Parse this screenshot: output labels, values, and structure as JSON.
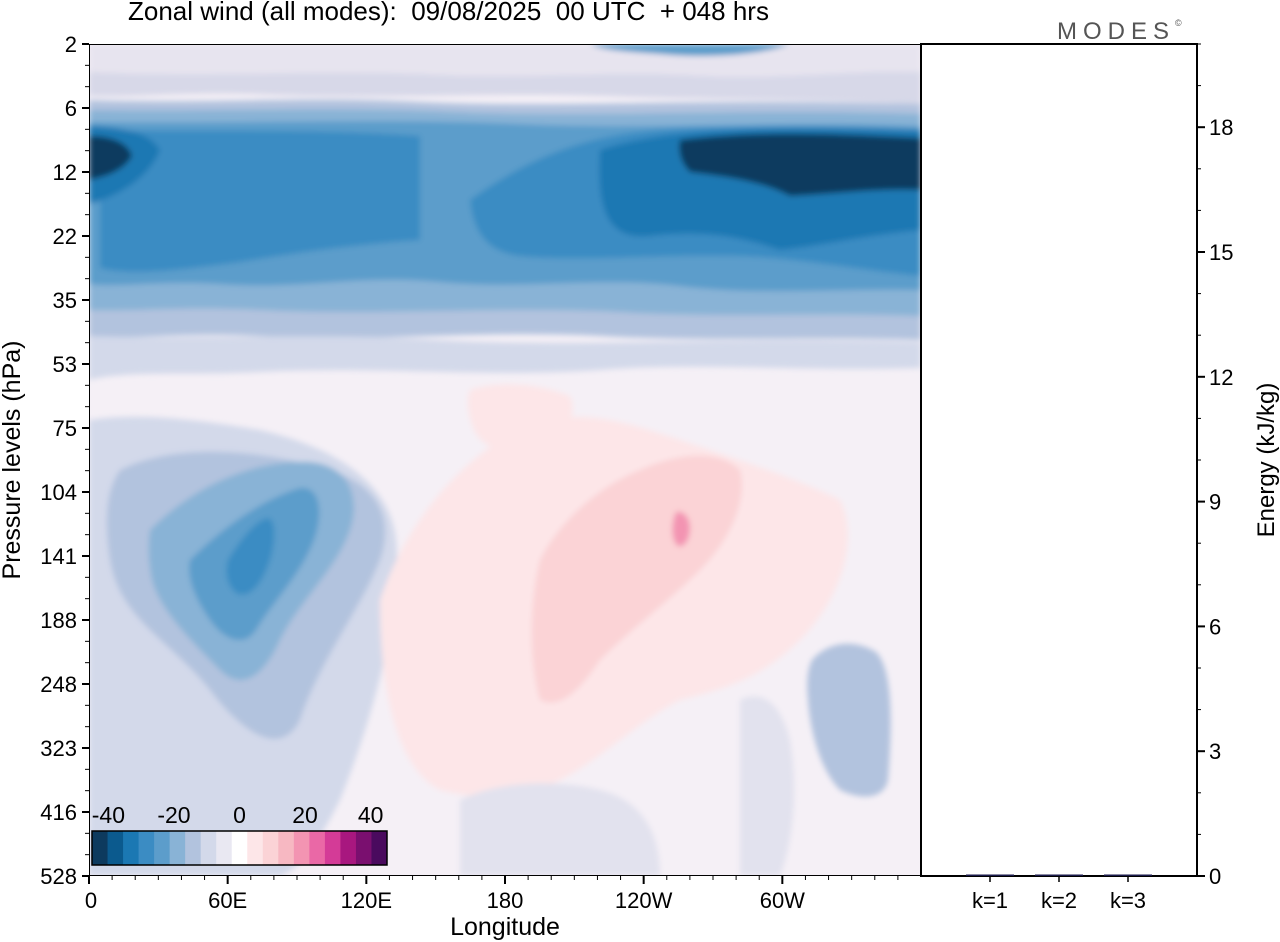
{
  "header": {
    "title": "Zonal wind (all modes):  09/08/2025  00 UTC  + 048 hrs",
    "brand": "MODES",
    "brand_mark": "©"
  },
  "chart_data": [
    {
      "type": "heatmap",
      "title": "Zonal wind (all modes):  09/08/2025  00 UTC  + 048 hrs",
      "xlabel": "Longitude",
      "ylabel": "Pressure levels (hPa)",
      "x_ticks": [
        "0",
        "60E",
        "120E",
        "180",
        "120W",
        "60W"
      ],
      "x_tick_values": [
        0,
        60,
        120,
        180,
        240,
        300
      ],
      "xlim": [
        0,
        360
      ],
      "y_ticks": [
        "2",
        "6",
        "12",
        "22",
        "35",
        "53",
        "75",
        "104",
        "141",
        "188",
        "248",
        "323",
        "416",
        "528"
      ],
      "y_scale": "level-index",
      "colorbar": {
        "labels": [
          "-40",
          "-20",
          "0",
          "20",
          "40"
        ],
        "label_values": [
          -40,
          -20,
          0,
          20,
          40
        ],
        "range": [
          -45,
          45
        ],
        "step": 5,
        "colors": [
          "#0d3a5e",
          "#0b5a8e",
          "#1b78b3",
          "#3b8cc3",
          "#5c9dcb",
          "#89b3d6",
          "#b2c3de",
          "#d3d9ea",
          "#e9e8f2",
          "#ffffff",
          "#fde6e8",
          "#fbd3d6",
          "#f7b8c2",
          "#f394b2",
          "#ea68a6",
          "#d43b97",
          "#a8177f",
          "#7a0f6f",
          "#4a0a5e"
        ]
      },
      "regions": [
        {
          "desc": "upper stratosphere weak easterly",
          "lon": [
            0,
            360
          ],
          "levels": [
            "2",
            "6"
          ],
          "value": -7
        },
        {
          "desc": "stratospheric easterly jet",
          "lon": [
            0,
            360
          ],
          "levels": [
            "6",
            "35"
          ],
          "value": -30
        },
        {
          "desc": "jet core west",
          "lon": [
            5,
            25
          ],
          "levels": [
            "8",
            "14"
          ],
          "value": -42
        },
        {
          "desc": "jet core east",
          "lon": [
            260,
            360
          ],
          "levels": [
            "9",
            "16"
          ],
          "value": -42
        },
        {
          "desc": "transition layer",
          "lon": [
            0,
            360
          ],
          "levels": [
            "35",
            "53"
          ],
          "value": -10
        },
        {
          "desc": "tropical easterly maximum",
          "lon": [
            30,
            110
          ],
          "levels": [
            "104",
            "248"
          ],
          "value": -22
        },
        {
          "desc": "westerly region",
          "lon": [
            195,
            300
          ],
          "levels": [
            "104",
            "248"
          ],
          "value": 8
        },
        {
          "desc": "westerly core",
          "lon": [
            255,
            260
          ],
          "levels": [
            "115",
            "130"
          ],
          "value": 14
        },
        {
          "desc": "lower-level weak easterly",
          "lon": [
            315,
            355
          ],
          "levels": [
            "248",
            "416"
          ],
          "value": -10
        }
      ]
    },
    {
      "type": "bar",
      "ylabel": "Energy (kJ/kg)",
      "categories": [
        "k=1",
        "k=2",
        "k=3"
      ],
      "values": [
        0.03,
        0.02,
        0.01
      ],
      "ylim": [
        0,
        20
      ],
      "y_ticks": [
        0,
        3,
        6,
        9,
        12,
        15,
        18
      ],
      "axis_side": "right"
    }
  ]
}
